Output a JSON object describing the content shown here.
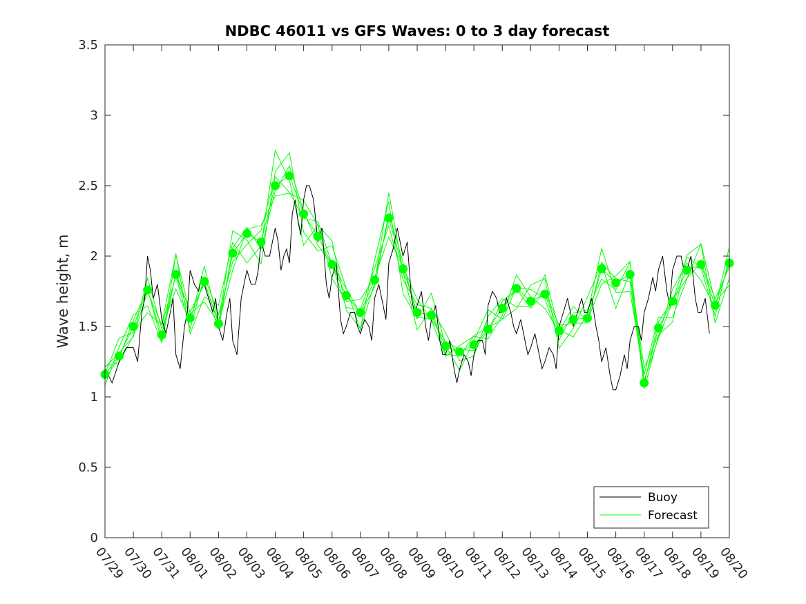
{
  "chart_data": {
    "type": "line",
    "title": "NDBC 46011 vs GFS Waves: 0 to 3 day forecast",
    "xlabel": "",
    "ylabel": "Wave height, m",
    "ylim": [
      0,
      3.5
    ],
    "xlim": [
      0,
      22
    ],
    "y_ticks": [
      0,
      0.5,
      1,
      1.5,
      2,
      2.5,
      3,
      3.5
    ],
    "y_tick_labels": [
      "0",
      "0.5",
      "1",
      "1.5",
      "2",
      "2.5",
      "3",
      "3.5"
    ],
    "x_ticks": [
      0,
      1,
      2,
      3,
      4,
      5,
      6,
      7,
      8,
      9,
      10,
      11,
      12,
      13,
      14,
      15,
      16,
      17,
      18,
      19,
      20,
      21,
      22
    ],
    "x_tick_labels": [
      "07/29",
      "07/30",
      "07/31",
      "08/01",
      "08/02",
      "08/03",
      "08/04",
      "08/05",
      "08/06",
      "08/07",
      "08/08",
      "08/09",
      "08/10",
      "08/11",
      "08/12",
      "08/13",
      "08/14",
      "08/15",
      "08/16",
      "08/17",
      "08/18",
      "08/19",
      "08/20"
    ],
    "grid": false,
    "legend": {
      "location": "bottom-right",
      "entries": [
        "Buoy",
        "Forecast"
      ]
    },
    "colors": {
      "buoy": "#000000",
      "forecast": "#00ff00",
      "axes": "#262626"
    },
    "series": [
      {
        "name": "Buoy",
        "x": [
          0,
          0.5,
          1,
          1.3,
          1.5,
          1.7,
          2,
          2.3,
          2.5,
          2.8,
          3,
          3.3,
          3.5,
          3.8,
          4,
          4.3,
          4.5,
          4.8,
          5,
          5.3,
          5.5,
          5.8,
          6,
          6.2,
          6.4,
          6.6,
          6.8,
          7,
          7.2,
          7.5,
          7.8,
          8,
          8.3,
          8.5,
          8.8,
          9,
          9.3,
          9.5,
          9.8,
          10,
          10.3,
          10.5,
          10.8,
          11,
          11.3,
          11.5,
          11.8,
          12,
          12.3,
          12.5,
          12.8,
          13,
          13.3,
          13.5,
          13.8,
          14,
          14.3,
          14.5,
          14.8,
          15,
          15.3,
          15.5,
          15.8,
          16,
          16.3,
          16.5,
          16.8,
          17,
          17.3,
          17.5,
          17.8,
          18,
          18.3,
          18.5,
          18.8,
          19,
          19.3,
          19.5,
          19.8,
          20,
          20.3,
          20.5,
          20.8,
          21,
          21.3
        ],
        "values": [
          1.2,
          1.25,
          1.35,
          1.6,
          2.0,
          1.7,
          1.55,
          1.6,
          1.3,
          1.5,
          1.9,
          1.75,
          1.8,
          1.6,
          1.5,
          1.6,
          1.4,
          1.7,
          1.9,
          1.8,
          2.1,
          2.0,
          2.2,
          1.9,
          2.05,
          2.3,
          2.25,
          2.4,
          2.5,
          2.1,
          1.8,
          1.85,
          1.55,
          1.5,
          1.6,
          1.45,
          1.5,
          1.7,
          1.65,
          1.95,
          2.2,
          2.0,
          1.7,
          1.65,
          1.5,
          1.55,
          1.4,
          1.3,
          1.2,
          1.2,
          1.25,
          1.3,
          1.4,
          1.65,
          1.7,
          1.6,
          1.6,
          1.45,
          1.4,
          1.35,
          1.3,
          1.25,
          1.3,
          1.5,
          1.7,
          1.5,
          1.7,
          1.6,
          1.5,
          1.25,
          1.15,
          1.05,
          1.3,
          1.4,
          1.5,
          1.6,
          1.85,
          1.9,
          1.75,
          1.9,
          2.0,
          1.9,
          1.7,
          1.6,
          1.45
        ]
      },
      {
        "name": "Forecast",
        "x": [
          0,
          0.5,
          1,
          1.5,
          2,
          2.5,
          3,
          3.5,
          4,
          4.5,
          5,
          5.5,
          6,
          6.5,
          7,
          7.5,
          8,
          8.5,
          9,
          9.5,
          10,
          10.5,
          11,
          11.5,
          12,
          12.5,
          13,
          13.5,
          14,
          14.5,
          15,
          15.5,
          16,
          16.5,
          17,
          17.5,
          18,
          18.5,
          19,
          19.5,
          20,
          20.5,
          21,
          21.5,
          22
        ],
        "values": [
          1.16,
          1.29,
          1.5,
          1.76,
          1.44,
          1.87,
          1.56,
          1.82,
          1.52,
          2.02,
          2.16,
          2.1,
          2.5,
          2.57,
          2.3,
          2.14,
          1.94,
          1.72,
          1.6,
          1.83,
          2.27,
          1.91,
          1.6,
          1.58,
          1.36,
          1.32,
          1.37,
          1.48,
          1.63,
          1.77,
          1.68,
          1.73,
          1.47,
          1.55,
          1.56,
          1.91,
          1.81,
          1.87,
          1.1,
          1.49,
          1.68,
          1.9,
          1.94,
          1.65,
          1.95
        ]
      }
    ]
  }
}
